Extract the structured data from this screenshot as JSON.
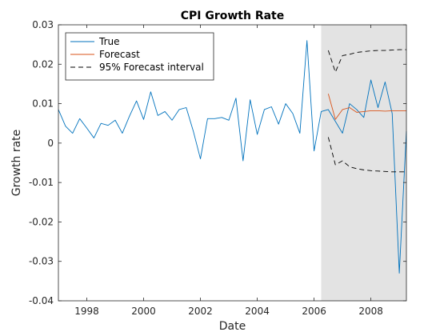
{
  "chart_data": {
    "type": "line",
    "title": "CPI Growth Rate",
    "xlabel": "Date",
    "ylabel": "Growth rate",
    "xlim": [
      1997.0,
      2009.25
    ],
    "ylim": [
      -0.04,
      0.03
    ],
    "xticks": [
      1998,
      2000,
      2002,
      2004,
      2006,
      2008
    ],
    "xtick_labels": [
      "1998",
      "2000",
      "2002",
      "2004",
      "2006",
      "2008"
    ],
    "yticks": [
      -0.04,
      -0.03,
      -0.02,
      -0.01,
      0,
      0.01,
      0.02,
      0.03
    ],
    "ytick_labels": [
      "-0.04",
      "-0.03",
      "-0.02",
      "-0.01",
      "0",
      "0.01",
      "0.02",
      "0.03"
    ],
    "grid": false,
    "legend_position": "top-left",
    "shaded_region": {
      "x_start": 2006.25,
      "x_end": 2009.25,
      "color": "#e3e3e3"
    },
    "series": [
      {
        "name": "True",
        "color": "#0072bd",
        "style": "solid",
        "x": [
          1997.0,
          1997.25,
          1997.5,
          1997.75,
          1998.0,
          1998.25,
          1998.5,
          1998.75,
          1999.0,
          1999.25,
          1999.5,
          1999.75,
          2000.0,
          2000.25,
          2000.5,
          2000.75,
          2001.0,
          2001.25,
          2001.5,
          2001.75,
          2002.0,
          2002.25,
          2002.5,
          2002.75,
          2003.0,
          2003.25,
          2003.5,
          2003.75,
          2004.0,
          2004.25,
          2004.5,
          2004.75,
          2005.0,
          2005.25,
          2005.5,
          2005.75,
          2006.0,
          2006.25,
          2006.5,
          2006.75,
          2007.0,
          2007.25,
          2007.5,
          2007.75,
          2008.0,
          2008.25,
          2008.5,
          2008.75,
          2009.0,
          2009.25
        ],
        "y": [
          0.0085,
          0.0043,
          0.0025,
          0.0062,
          0.0038,
          0.0013,
          0.005,
          0.0045,
          0.0058,
          0.0025,
          0.0068,
          0.0107,
          0.006,
          0.013,
          0.007,
          0.008,
          0.0058,
          0.0085,
          0.009,
          0.003,
          -0.004,
          0.0062,
          0.0062,
          0.0065,
          0.0058,
          0.0114,
          -0.0045,
          0.011,
          0.0022,
          0.0085,
          0.0092,
          0.0048,
          0.01,
          0.0075,
          0.0025,
          0.026,
          -0.002,
          0.008,
          0.0085,
          0.0055,
          0.0025,
          0.01,
          0.0085,
          0.0065,
          0.016,
          0.009,
          0.0155,
          0.0075,
          -0.033,
          0.003
        ]
      },
      {
        "name": "Forecast",
        "color": "#d95319",
        "style": "solid",
        "x": [
          2006.5,
          2006.75,
          2007.0,
          2007.25,
          2007.5,
          2007.75,
          2008.0,
          2008.25,
          2008.5,
          2008.75,
          2009.0,
          2009.25
        ],
        "y": [
          0.0125,
          0.006,
          0.0085,
          0.009,
          0.0078,
          0.008,
          0.0082,
          0.0082,
          0.0081,
          0.0082,
          0.0082,
          0.0082
        ]
      },
      {
        "name": "95% Forecast interval",
        "color": "#000000",
        "style": "dashed",
        "x": [
          2006.5,
          2006.75,
          2007.0,
          2007.25,
          2007.5,
          2007.75,
          2008.0,
          2008.25,
          2008.5,
          2008.75,
          2009.0,
          2009.25
        ],
        "y": [
          0.0235,
          0.018,
          0.0222,
          0.0225,
          0.023,
          0.0232,
          0.0234,
          0.0235,
          0.0235,
          0.0236,
          0.0237,
          0.0237
        ]
      },
      {
        "name": "",
        "color": "#000000",
        "style": "dashed",
        "x": [
          2006.5,
          2006.75,
          2007.0,
          2007.25,
          2007.5,
          2007.75,
          2008.0,
          2008.25,
          2008.5,
          2008.75,
          2009.0,
          2009.25
        ],
        "y": [
          0.0015,
          -0.0055,
          -0.0045,
          -0.006,
          -0.0065,
          -0.0068,
          -0.007,
          -0.0071,
          -0.0072,
          -0.0073,
          -0.0073,
          -0.0073
        ]
      }
    ]
  }
}
